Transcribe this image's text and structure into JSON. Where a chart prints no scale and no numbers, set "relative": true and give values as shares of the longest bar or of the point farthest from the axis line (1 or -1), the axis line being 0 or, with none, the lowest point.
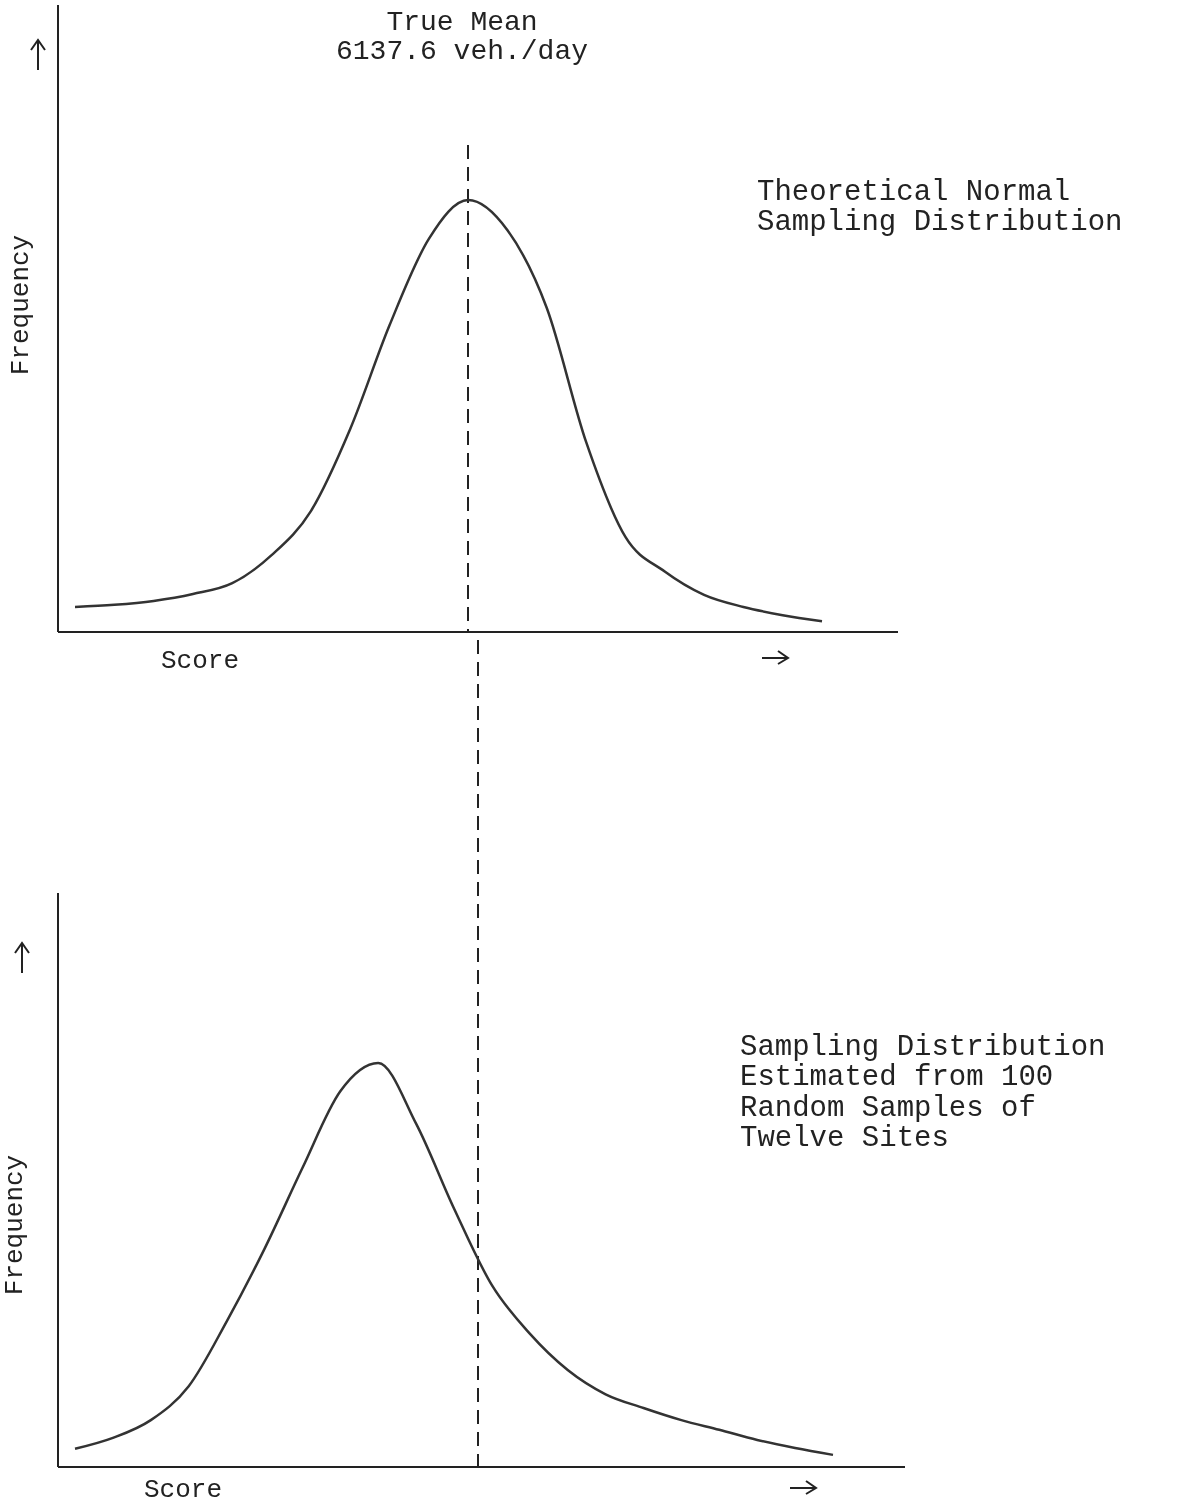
{
  "chart_data": [
    {
      "type": "line",
      "relative": true,
      "xlabel": "Score",
      "ylabel": "Frequency",
      "categories": [
        null,
        null,
        null,
        null,
        null,
        null,
        null,
        null,
        null,
        null,
        null,
        null,
        null,
        null,
        null,
        null,
        null,
        null,
        null,
        null
      ],
      "series": [
        {
          "color": "#333333",
          "values": [
            0.058,
            0.063,
            0.072,
            0.088,
            0.113,
            0.178,
            0.28,
            0.47,
            0.71,
            0.91,
            1,
            0.93,
            0.75,
            0.44,
            0.22,
            0.14,
            0.086,
            0.058,
            0.039,
            0.025
          ]
        }
      ],
      "annotations": [
        "True Mean\n6137.6 veh./day",
        "Theoretical Normal\nSampling Distribution"
      ],
      "line_style": "solid"
    },
    {
      "type": "line",
      "relative": true,
      "xlabel": "Score",
      "ylabel": "Frequency",
      "categories": [
        null,
        null,
        null,
        null,
        null,
        null,
        null,
        null,
        null,
        null,
        null,
        null,
        null,
        null,
        null,
        null,
        null,
        null,
        null,
        null,
        null
      ],
      "series": [
        {
          "color": "#333333",
          "values": [
            0.045,
            0.072,
            0.116,
            0.2,
            0.36,
            0.54,
            0.74,
            0.93,
            1,
            0.85,
            0.64,
            0.45,
            0.33,
            0.24,
            0.18,
            0.146,
            0.116,
            0.092,
            0.067,
            0.047,
            0.03
          ]
        }
      ],
      "annotations": [
        "Sampling Distribution\nEstimated from 100\nRandom Samples of\nTwelve Sites"
      ],
      "line_style": "solid"
    }
  ]
}
